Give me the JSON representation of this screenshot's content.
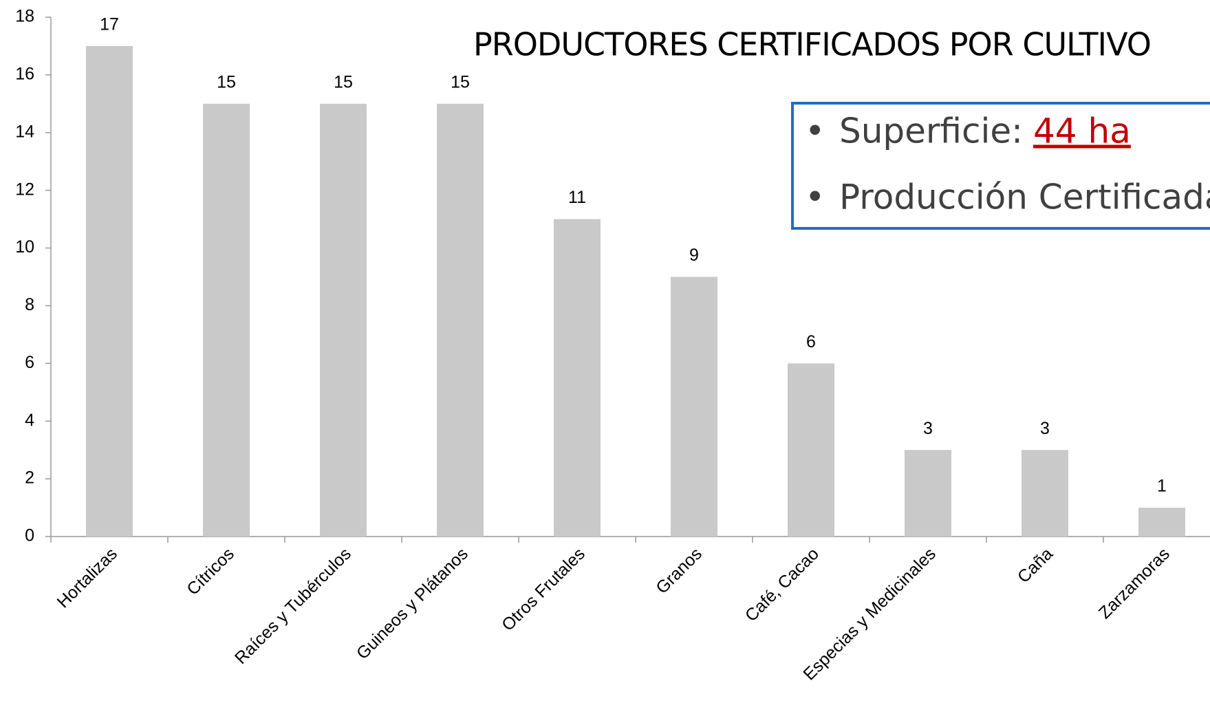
{
  "chart_data": {
    "type": "bar",
    "title": "PRODUCTORES CERTIFICADOS POR CULTIVO",
    "categories": [
      "Hortalizas",
      "Cítricos",
      "Raíces y Tubérculos",
      "Guineos y Plátanos",
      "Otros Frutales",
      "Granos",
      "Café, Cacao",
      "Especias y Medicinales",
      "Caña",
      "Zarzamoras"
    ],
    "values": [
      17,
      15,
      15,
      15,
      11,
      9,
      6,
      3,
      3,
      1
    ],
    "color": "#c9c9c9",
    "ylim": [
      0,
      18
    ],
    "yticks": [
      0,
      2,
      4,
      6,
      8,
      10,
      12,
      14,
      16,
      18
    ],
    "grid": false,
    "info_box": {
      "items": [
        {
          "label": "Superficie:",
          "value": "44 ha"
        },
        {
          "label": "Producción Certificada"
        }
      ]
    }
  }
}
